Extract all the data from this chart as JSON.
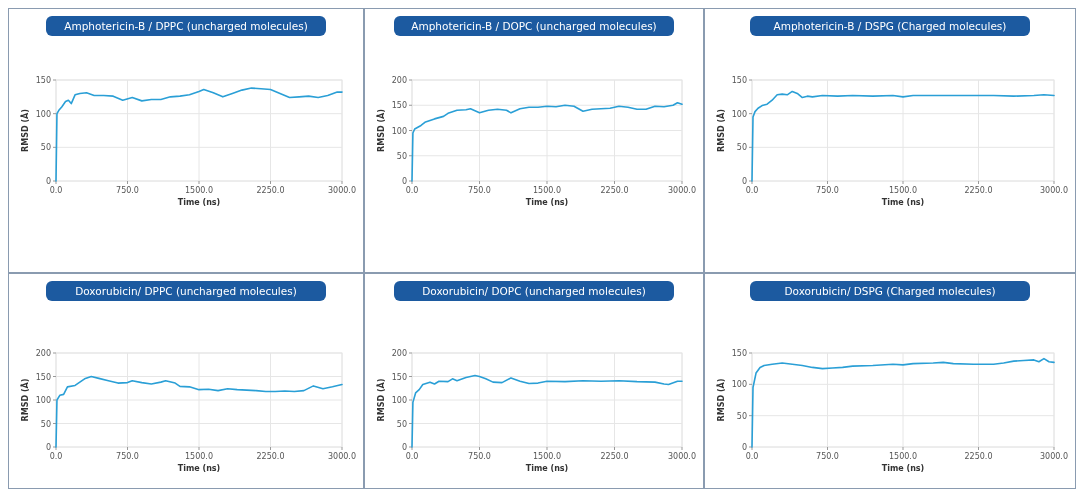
{
  "chart_data": [
    {
      "type": "line",
      "title": "Amphotericin-B / DPPC (uncharged molecules)",
      "xlabel": "Time (ns)",
      "ylabel": "RMSD (Å)",
      "xlim": [
        0,
        3000
      ],
      "xticks": [
        {
          "value": 0,
          "label": "0.0"
        },
        {
          "value": 750,
          "label": "750.0"
        },
        {
          "value": 1500,
          "label": "1500.0"
        },
        {
          "value": 2250,
          "label": "2250.0"
        },
        {
          "value": 3000,
          "label": "3000.0"
        }
      ],
      "ylim": [
        0,
        150
      ],
      "yticks": [
        0,
        50,
        100,
        150
      ],
      "grid": true,
      "series": [
        {
          "color": "#2a9fd6",
          "x": [
            0,
            10,
            30,
            60,
            100,
            130,
            160,
            200,
            250,
            320,
            400,
            500,
            600,
            700,
            800,
            900,
            1000,
            1100,
            1200,
            1300,
            1400,
            1500,
            1550,
            1650,
            1750,
            1850,
            1950,
            2050,
            2150,
            2250,
            2350,
            2450,
            2550,
            2650,
            2750,
            2850,
            2950,
            3000
          ],
          "values": [
            0,
            100,
            105,
            110,
            118,
            120,
            115,
            128,
            130,
            131,
            127,
            127,
            126,
            120,
            124,
            119,
            121,
            121,
            125,
            126,
            128,
            133,
            136,
            131,
            125,
            130,
            135,
            138,
            137,
            136,
            130,
            124,
            125,
            126,
            124,
            127,
            132,
            132
          ]
        }
      ]
    },
    {
      "type": "line",
      "title": "Amphotericin-B / DOPC (uncharged molecules)",
      "xlabel": "Time (ns)",
      "ylabel": "RMSD (Å)",
      "xlim": [
        0,
        3000
      ],
      "xticks": [
        {
          "value": 0,
          "label": "0.0"
        },
        {
          "value": 750,
          "label": "750.0"
        },
        {
          "value": 1500,
          "label": "1500.0"
        },
        {
          "value": 2250,
          "label": "2250.0"
        },
        {
          "value": 3000,
          "label": "3000.0"
        }
      ],
      "ylim": [
        0,
        200
      ],
      "yticks": [
        0,
        50,
        100,
        150,
        200
      ],
      "grid": true,
      "series": [
        {
          "color": "#2a9fd6",
          "x": [
            0,
            10,
            30,
            100,
            150,
            250,
            350,
            400,
            500,
            600,
            650,
            750,
            850,
            950,
            1050,
            1100,
            1200,
            1300,
            1400,
            1500,
            1600,
            1700,
            1800,
            1900,
            2000,
            2100,
            2200,
            2300,
            2400,
            2500,
            2600,
            2700,
            2800,
            2900,
            2950,
            3000
          ],
          "values": [
            0,
            95,
            103,
            110,
            117,
            123,
            128,
            134,
            140,
            141,
            143,
            135,
            140,
            142,
            140,
            135,
            143,
            146,
            146,
            148,
            147,
            150,
            148,
            138,
            142,
            143,
            144,
            148,
            146,
            142,
            142,
            148,
            147,
            150,
            155,
            152
          ]
        }
      ]
    },
    {
      "type": "line",
      "title": "Amphotericin-B /  DSPG (Charged molecules)",
      "xlabel": "Time (ns)",
      "ylabel": "RMSD (Å)",
      "xlim": [
        0,
        3000
      ],
      "xticks": [
        {
          "value": 0,
          "label": "0.0"
        },
        {
          "value": 750,
          "label": "750.0"
        },
        {
          "value": 1500,
          "label": "1500.0"
        },
        {
          "value": 2250,
          "label": "2250.0"
        },
        {
          "value": 3000,
          "label": "3000.0"
        }
      ],
      "ylim": [
        0,
        150
      ],
      "yticks": [
        0,
        50,
        100,
        150
      ],
      "grid": true,
      "series": [
        {
          "color": "#2a9fd6",
          "x": [
            0,
            10,
            30,
            60,
            100,
            150,
            200,
            250,
            300,
            350,
            400,
            450,
            500,
            550,
            600,
            700,
            850,
            1000,
            1200,
            1400,
            1500,
            1600,
            1800,
            2000,
            2200,
            2400,
            2600,
            2800,
            2900,
            3000
          ],
          "values": [
            0,
            95,
            103,
            108,
            112,
            114,
            120,
            128,
            129,
            128,
            133,
            130,
            124,
            126,
            125,
            127,
            126,
            127,
            126,
            127,
            125,
            127,
            127,
            127,
            127,
            127,
            126,
            127,
            128,
            127
          ]
        }
      ]
    },
    {
      "type": "line",
      "title": "Doxorubicin/ DPPC (uncharged molecules)",
      "xlabel": "Time (ns)",
      "ylabel": "RMSD (Å)",
      "xlim": [
        0,
        3000
      ],
      "xticks": [
        {
          "value": 0,
          "label": "0.0"
        },
        {
          "value": 750,
          "label": "750.0"
        },
        {
          "value": 1500,
          "label": "1500.0"
        },
        {
          "value": 2250,
          "label": "2250.0"
        },
        {
          "value": 3000,
          "label": "3000.0"
        }
      ],
      "ylim": [
        0,
        200
      ],
      "yticks": [
        0,
        50,
        100,
        150,
        200
      ],
      "grid": true,
      "series": [
        {
          "color": "#2a9fd6",
          "x": [
            0,
            10,
            40,
            80,
            120,
            200,
            250,
            300,
            370,
            450,
            550,
            650,
            750,
            800,
            900,
            1000,
            1100,
            1150,
            1250,
            1300,
            1400,
            1500,
            1600,
            1700,
            1800,
            1900,
            2000,
            2100,
            2200,
            2300,
            2400,
            2500,
            2600,
            2700,
            2800,
            2900,
            3000
          ],
          "values": [
            0,
            100,
            110,
            112,
            128,
            131,
            138,
            145,
            150,
            146,
            141,
            136,
            137,
            141,
            137,
            134,
            138,
            141,
            136,
            129,
            128,
            122,
            123,
            120,
            124,
            122,
            121,
            120,
            118,
            118,
            119,
            118,
            120,
            130,
            124,
            128,
            133
          ]
        }
      ]
    },
    {
      "type": "line",
      "title": "Doxorubicin/ DOPC (uncharged molecules)",
      "xlabel": "Time (ns)",
      "ylabel": "RMSD (Å)",
      "xlim": [
        0,
        3000
      ],
      "xticks": [
        {
          "value": 0,
          "label": "0.0"
        },
        {
          "value": 750,
          "label": "750.0"
        },
        {
          "value": 1500,
          "label": "1500.0"
        },
        {
          "value": 2250,
          "label": "2250.0"
        },
        {
          "value": 3000,
          "label": "3000.0"
        }
      ],
      "ylim": [
        0,
        200
      ],
      "yticks": [
        0,
        50,
        100,
        150,
        200
      ],
      "grid": true,
      "series": [
        {
          "color": "#2a9fd6",
          "x": [
            0,
            10,
            40,
            80,
            120,
            200,
            250,
            300,
            400,
            450,
            500,
            600,
            700,
            750,
            820,
            900,
            1000,
            1100,
            1200,
            1300,
            1400,
            1500,
            1700,
            1900,
            2100,
            2300,
            2500,
            2700,
            2800,
            2850,
            2950,
            3000
          ],
          "values": [
            0,
            95,
            115,
            122,
            133,
            138,
            134,
            140,
            139,
            145,
            141,
            148,
            152,
            150,
            145,
            138,
            137,
            147,
            140,
            135,
            136,
            140,
            139,
            141,
            140,
            141,
            139,
            138,
            134,
            133,
            140,
            140
          ]
        }
      ]
    },
    {
      "type": "line",
      "title": "Doxorubicin/  DSPG (Charged molecules)",
      "xlabel": "Time (ns)",
      "ylabel": "RMSD (Å)",
      "xlim": [
        0,
        3000
      ],
      "xticks": [
        {
          "value": 0,
          "label": "0.0"
        },
        {
          "value": 750,
          "label": "750.0"
        },
        {
          "value": 1500,
          "label": "1500.0"
        },
        {
          "value": 2250,
          "label": "2250.0"
        },
        {
          "value": 3000,
          "label": "3000.0"
        }
      ],
      "ylim": [
        0,
        150
      ],
      "yticks": [
        0,
        50,
        100,
        150
      ],
      "grid": true,
      "series": [
        {
          "color": "#2a9fd6",
          "x": [
            0,
            10,
            40,
            80,
            120,
            200,
            300,
            400,
            500,
            600,
            700,
            800,
            900,
            1000,
            1200,
            1400,
            1500,
            1600,
            1800,
            1900,
            2000,
            2200,
            2400,
            2500,
            2600,
            2700,
            2800,
            2850,
            2900,
            2950,
            3000
          ],
          "values": [
            0,
            95,
            118,
            127,
            130,
            132,
            134,
            132,
            130,
            127,
            125,
            126,
            127,
            129,
            130,
            132,
            131,
            133,
            134,
            135,
            133,
            132,
            132,
            134,
            137,
            138,
            139,
            136,
            141,
            136,
            135
          ]
        }
      ]
    }
  ]
}
